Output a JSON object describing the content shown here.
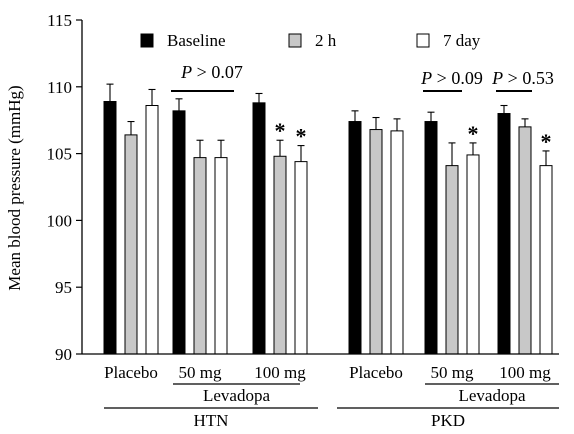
{
  "chart_data": {
    "type": "bar",
    "title": "",
    "ylabel": "Mean blood pressure (mmHg)",
    "ylim": [
      90,
      115
    ],
    "yticks": [
      90,
      95,
      100,
      105,
      110,
      115
    ],
    "grid": false,
    "legend_position": "top",
    "series": [
      {
        "name": "Baseline",
        "color": "#000000"
      },
      {
        "name": "2 h",
        "color": "#c8c8c8"
      },
      {
        "name": "7 day",
        "color": "#ffffff"
      }
    ],
    "groups": [
      {
        "label": "Placebo",
        "values": [
          108.9,
          106.4,
          108.6
        ],
        "errors": [
          1.3,
          1.0,
          1.2
        ],
        "sig": [
          false,
          false,
          false
        ]
      },
      {
        "label": "50 mg",
        "values": [
          108.2,
          104.7,
          104.7
        ],
        "errors": [
          0.9,
          1.3,
          1.3
        ],
        "sig": [
          false,
          false,
          false
        ]
      },
      {
        "label": "100 mg",
        "values": [
          108.8,
          104.8,
          104.4
        ],
        "errors": [
          0.7,
          1.2,
          1.2
        ],
        "sig": [
          false,
          true,
          true
        ]
      },
      {
        "label": "Placebo",
        "values": [
          107.4,
          106.8,
          106.7
        ],
        "errors": [
          0.8,
          0.9,
          0.9
        ],
        "sig": [
          false,
          false,
          false
        ]
      },
      {
        "label": "50 mg",
        "values": [
          107.4,
          104.1,
          104.9
        ],
        "errors": [
          0.7,
          1.7,
          0.9
        ],
        "sig": [
          false,
          false,
          true
        ]
      },
      {
        "label": "100 mg",
        "values": [
          108.0,
          107.0,
          104.1
        ],
        "errors": [
          0.6,
          0.6,
          1.1
        ],
        "sig": [
          false,
          false,
          true
        ]
      }
    ],
    "significance_marker": "*",
    "p_annotations": [
      {
        "text": "P > 0.07",
        "groups": [
          1,
          2
        ]
      },
      {
        "text": "P > 0.09",
        "groups": [
          4
        ]
      },
      {
        "text": "P > 0.53",
        "groups": [
          5
        ]
      }
    ],
    "sub_brackets": [
      {
        "label": "Levadopa",
        "groups": [
          1,
          2
        ]
      },
      {
        "label": "Levadopa",
        "groups": [
          4,
          5
        ]
      }
    ],
    "brackets": [
      {
        "label": "HTN",
        "groups": [
          0,
          1,
          2
        ]
      },
      {
        "label": "PKD",
        "groups": [
          3,
          4,
          5
        ]
      }
    ]
  }
}
